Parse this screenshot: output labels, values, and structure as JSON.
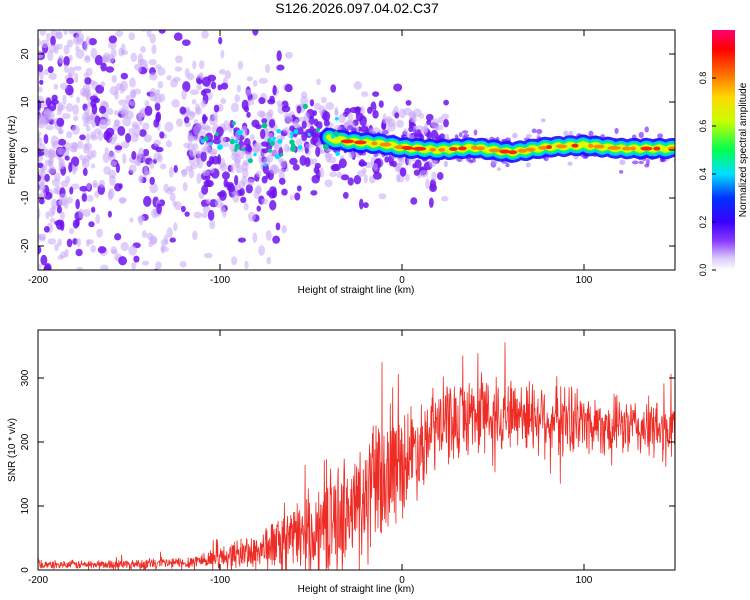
{
  "title": "S126.2026.097.04.02.C37",
  "colors": {
    "snr_line": "#ee2b24",
    "scatter": "#7a1fe8",
    "colormap": [
      "#ffffff",
      "#cdb8f5",
      "#6a10ff",
      "#0000ff",
      "#00e5ff",
      "#00ff40",
      "#ffff00",
      "#ff7f00",
      "#ff0000",
      "#ff0080"
    ]
  },
  "chart_data": [
    {
      "type": "heatmap",
      "name": "spectrogram",
      "xlabel": "Height of straight line (km)",
      "ylabel": "Frequency (Hz)",
      "xlim": [
        -200,
        150
      ],
      "ylim": [
        -25,
        25
      ],
      "xticks": [
        -200,
        -100,
        0,
        100
      ],
      "xtick_labels": [
        "-200",
        "-100",
        "0",
        "100"
      ],
      "yticks": [
        -20,
        -10,
        0,
        10,
        20
      ],
      "ytick_labels": [
        "-20",
        "-10",
        "0",
        "10",
        "20"
      ],
      "colorbar": {
        "label": "Normalized spectral amplitude",
        "range": [
          0,
          1
        ],
        "ticks": [
          0.0,
          0.2,
          0.4,
          0.6,
          0.8
        ],
        "tick_labels": [
          "0.0",
          "0.2",
          "0.4",
          "0.6",
          "0.8"
        ]
      },
      "signal_centerline": [
        {
          "x": -110,
          "y": 2.0
        },
        {
          "x": -90,
          "y": 1.5
        },
        {
          "x": -70,
          "y": 0.8
        },
        {
          "x": -50,
          "y": 3.0
        },
        {
          "x": -30,
          "y": 1.8
        },
        {
          "x": -10,
          "y": 1.2
        },
        {
          "x": 0,
          "y": 0.5
        },
        {
          "x": 20,
          "y": 0.0
        },
        {
          "x": 40,
          "y": 0.5
        },
        {
          "x": 60,
          "y": -0.5
        },
        {
          "x": 80,
          "y": 0.6
        },
        {
          "x": 100,
          "y": 1.0
        },
        {
          "x": 120,
          "y": 0.3
        },
        {
          "x": 140,
          "y": 0.3
        }
      ]
    },
    {
      "type": "line",
      "name": "snr",
      "xlabel": "Height of straight line (km)",
      "ylabel": "SNR (10 * v/v)",
      "xlim": [
        -200,
        150
      ],
      "ylim": [
        0,
        375
      ],
      "xticks": [
        -200,
        -100,
        0,
        100
      ],
      "xtick_labels": [
        "-200",
        "-100",
        "0",
        "100"
      ],
      "yticks": [
        0,
        100,
        200,
        300
      ],
      "ytick_labels": [
        "0",
        "100",
        "200",
        "300"
      ],
      "envelope": {
        "x": [
          -200,
          -150,
          -120,
          -100,
          -80,
          -60,
          -40,
          -20,
          0,
          20,
          40,
          60,
          80,
          100,
          120,
          150
        ],
        "mean": [
          8,
          9,
          11,
          20,
          30,
          50,
          75,
          110,
          170,
          225,
          245,
          245,
          240,
          230,
          225,
          215
        ],
        "spread": [
          6,
          7,
          9,
          16,
          28,
          45,
          70,
          95,
          75,
          60,
          55,
          50,
          55,
          45,
          40,
          45
        ]
      }
    }
  ]
}
